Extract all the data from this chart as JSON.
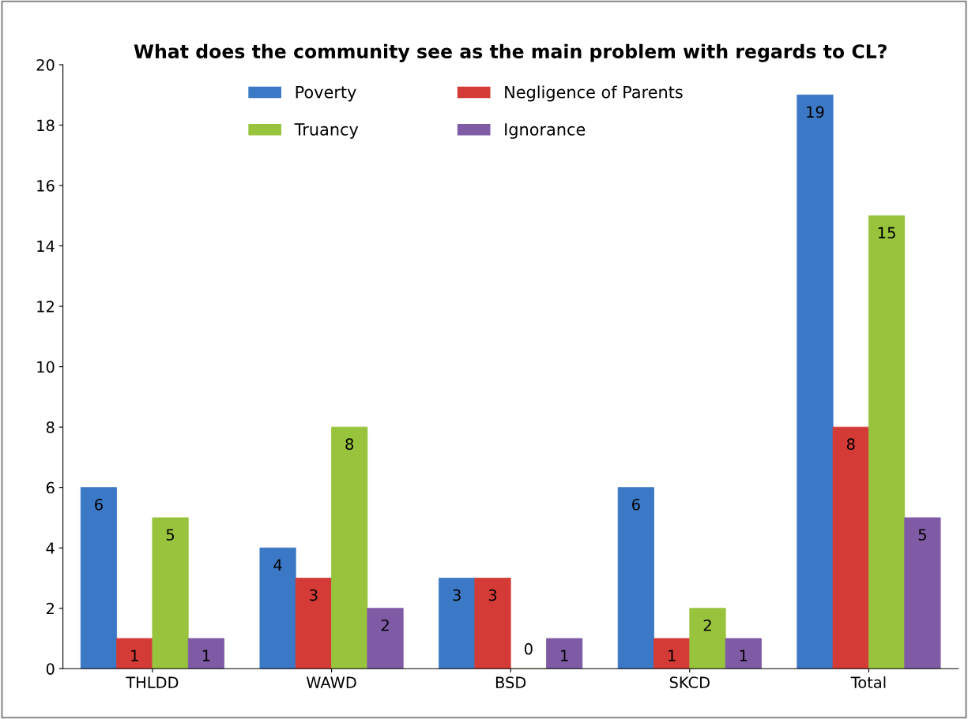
{
  "chart_data": {
    "type": "bar",
    "title": "What does the community see as the main problem with regards to CL?",
    "categories": [
      "THLDD",
      "WAWD",
      "BSD",
      "SKCD",
      "Total"
    ],
    "series": [
      {
        "name": "Poverty",
        "color": "#3b78c5",
        "values": [
          6,
          4,
          3,
          6,
          19
        ]
      },
      {
        "name": "Negligence of Parents",
        "color": "#d43b36",
        "values": [
          1,
          3,
          3,
          1,
          8
        ]
      },
      {
        "name": "Truancy",
        "color": "#98c33d",
        "values": [
          5,
          8,
          0,
          2,
          15
        ]
      },
      {
        "name": "Ignorance",
        "color": "#7f5ba5",
        "values": [
          1,
          2,
          1,
          1,
          5
        ]
      }
    ],
    "ylim": [
      0,
      20
    ],
    "yticks": [
      0,
      2,
      4,
      6,
      8,
      10,
      12,
      14,
      16,
      18,
      20
    ],
    "data_labels": true,
    "legend": "top",
    "grid": false
  }
}
